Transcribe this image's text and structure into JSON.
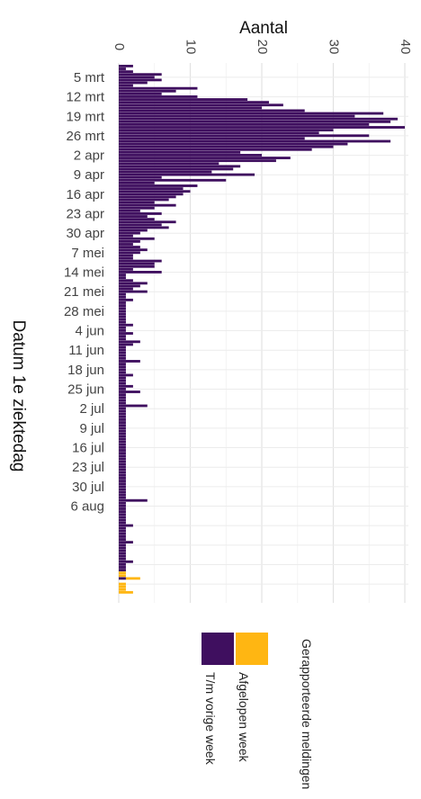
{
  "chart_data": {
    "type": "bar",
    "orientation": "horizontal",
    "stacked": true,
    "title": "",
    "xlabel": "Aantal",
    "ylabel": "Datum 1e ziektedag",
    "xlim": [
      0,
      40.5
    ],
    "xticks": [
      0,
      10,
      20,
      30,
      40
    ],
    "date_ticks": [
      "5 mrt",
      "12 mrt",
      "19 mrt",
      "26 mrt",
      "2 apr",
      "9 apr",
      "16 apr",
      "23 apr",
      "30 apr",
      "7 mei",
      "14 mei",
      "21 mei",
      "28 mei",
      "4 jun",
      "11 jun",
      "18 jun",
      "25 jun",
      "2 jul",
      "9 jul",
      "16 jul",
      "23 jul",
      "30 jul",
      "6 aug"
    ],
    "grid": true,
    "first_date": "1 mrt",
    "legend": {
      "title": "Gerapporteerde meldingen",
      "placement": "bottom",
      "entries": [
        {
          "label": "T/m vorige week",
          "color": "#3f0f5f"
        },
        {
          "label": "Afgelopen week",
          "color": "#ffb612"
        }
      ]
    },
    "series": [
      {
        "name": "T/m vorige week",
        "color": "#3f0f5f",
        "values": [
          2,
          1,
          2,
          6,
          5,
          6,
          4,
          2,
          11,
          8,
          6,
          11,
          18,
          21,
          23,
          20,
          26,
          37,
          33,
          39,
          38,
          35,
          40,
          30,
          28,
          35,
          26,
          38,
          32,
          30,
          27,
          17,
          20,
          24,
          22,
          14,
          17,
          16,
          13,
          19,
          6,
          15,
          5,
          11,
          9,
          10,
          9,
          8,
          7,
          5,
          8,
          5,
          3,
          6,
          4,
          5,
          8,
          6,
          7,
          4,
          3,
          2,
          5,
          3,
          2,
          3,
          4,
          3,
          2,
          2,
          6,
          5,
          5,
          2,
          6,
          1,
          1,
          2,
          4,
          3,
          2,
          4,
          1,
          1,
          2,
          1,
          1,
          1,
          1,
          1,
          1,
          1,
          1,
          2,
          1,
          1,
          2,
          1,
          1,
          3,
          2,
          1,
          1,
          1,
          1,
          1,
          3,
          1,
          1,
          1,
          1,
          2,
          1,
          1,
          1,
          2,
          1,
          3,
          1,
          1,
          1,
          1,
          4,
          1,
          1,
          1,
          1,
          1,
          1,
          1,
          1,
          1,
          1,
          1,
          1,
          1,
          1,
          1,
          1,
          1,
          1,
          1,
          1,
          1,
          1,
          1,
          1,
          1,
          1,
          1,
          1,
          1,
          1,
          1,
          1,
          1,
          4,
          1,
          1,
          1,
          1,
          1,
          1,
          1,
          1,
          2,
          1,
          1,
          1,
          1,
          1,
          2,
          1,
          1,
          1,
          1,
          1,
          1,
          2,
          1,
          1,
          1,
          0,
          0,
          1,
          0,
          0,
          0,
          0,
          0
        ]
      },
      {
        "name": "Afgelopen week",
        "color": "#ffb612",
        "values": [
          0,
          0,
          0,
          0,
          0,
          0,
          0,
          0,
          0,
          0,
          0,
          0,
          0,
          0,
          0,
          0,
          0,
          0,
          0,
          0,
          0,
          0,
          0,
          0,
          0,
          0,
          0,
          0,
          0,
          0,
          0,
          0,
          0,
          0,
          0,
          0,
          0,
          0,
          0,
          0,
          0,
          0,
          0,
          0,
          0,
          0,
          0,
          0,
          0,
          0,
          0,
          0,
          0,
          0,
          0,
          0,
          0,
          0,
          0,
          0,
          0,
          0,
          0,
          0,
          0,
          0,
          0,
          0,
          0,
          0,
          0,
          0,
          0,
          0,
          0,
          0,
          0,
          0,
          0,
          0,
          0,
          0,
          0,
          0,
          0,
          0,
          0,
          0,
          0,
          0,
          0,
          0,
          0,
          0,
          0,
          0,
          0,
          0,
          0,
          0,
          0,
          0,
          0,
          0,
          0,
          0,
          0,
          0,
          0,
          0,
          0,
          0,
          0,
          0,
          0,
          0,
          0,
          0,
          0,
          0,
          0,
          0,
          0,
          0,
          0,
          0,
          0,
          0,
          0,
          0,
          0,
          0,
          0,
          0,
          0,
          0,
          0,
          0,
          0,
          0,
          0,
          0,
          0,
          0,
          0,
          0,
          0,
          0,
          0,
          0,
          0,
          0,
          0,
          0,
          0,
          0,
          0,
          0,
          0,
          0,
          0,
          0,
          0,
          0,
          0,
          0,
          0,
          0,
          0,
          0,
          0,
          0,
          0,
          0,
          0,
          0,
          0,
          0,
          0,
          0,
          0,
          0,
          1,
          1,
          2,
          0,
          1,
          1,
          1,
          2,
          1,
          2,
          1,
          2,
          2,
          1,
          1,
          1
        ]
      }
    ]
  }
}
